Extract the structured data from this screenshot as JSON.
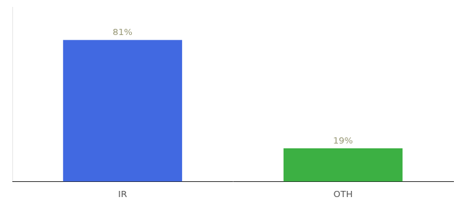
{
  "chart_data": {
    "type": "bar",
    "categories": [
      "IR",
      "OTH"
    ],
    "values": [
      81,
      19
    ],
    "value_labels": [
      "81%",
      "19%"
    ],
    "colors": [
      "#4169E1",
      "#3CB043"
    ],
    "ylim": [
      0,
      100
    ],
    "grid": false,
    "data_labels": true,
    "tick_labels": "x"
  }
}
